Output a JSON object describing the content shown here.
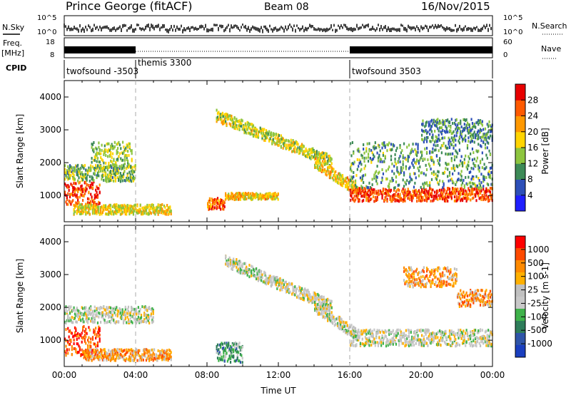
{
  "header": {
    "station": "Prince George (fitACF)",
    "beam": "Beam 08",
    "date": "16/Nov/2015"
  },
  "strip": {
    "nsky_label": "N.Sky",
    "nsearch_label": "N.Search",
    "noise_ticks": [
      "10^5",
      "10^0"
    ],
    "freq_label": "Freq.",
    "freq_unit": "[MHz]",
    "freq_ticks": [
      "18",
      "8"
    ],
    "nave_label": "Nave",
    "nave_ticks": [
      "60",
      "0"
    ],
    "cpid_label": "CPID",
    "cpid_segments": [
      {
        "name": "twofsound -3503",
        "start_h": 0,
        "end_h": 4
      },
      {
        "name": "themis 3300",
        "start_h": 4,
        "end_h": 16
      },
      {
        "name": "twofsound 3503",
        "start_h": 16,
        "end_h": 24
      }
    ]
  },
  "colors": {
    "power": [
      "#1f1fff",
      "#2d4fb8",
      "#3d8a57",
      "#8dc53f",
      "#ffd400",
      "#ff9800",
      "#ff5a00",
      "#e80000"
    ],
    "velocity": [
      "#ff0000",
      "#ff4a00",
      "#ff8a00",
      "#ffb000",
      "#c0c0c0",
      "#c8c8c8",
      "#3fb24a",
      "#2e7d5a",
      "#2f55a8",
      "#1a3fbf"
    ]
  },
  "chart_data": [
    {
      "type": "heatmap",
      "panel": "power",
      "ylabel": "Slant Range [km]",
      "xlabel": "",
      "yticks": [
        "1000",
        "2000",
        "3000",
        "4000"
      ],
      "ylim": [
        200,
        4500
      ],
      "xlim": [
        0,
        24
      ],
      "colorbar": {
        "label": "Power [dB]",
        "ticks": [
          "4",
          "8",
          "12",
          "16",
          "20",
          "24",
          "28"
        ],
        "range": [
          0,
          30
        ]
      },
      "bands": [
        {
          "t0": 0.0,
          "t1": 2.0,
          "r0": 700,
          "r1": 1400,
          "level": 0.85
        },
        {
          "t0": 0.0,
          "t1": 4.0,
          "r0": 1400,
          "r1": 1900,
          "level": 0.4
        },
        {
          "t0": 1.5,
          "t1": 3.8,
          "r0": 1800,
          "r1": 2600,
          "level": 0.45
        },
        {
          "t0": 0.5,
          "t1": 6.0,
          "r0": 400,
          "r1": 700,
          "level": 0.55
        },
        {
          "t0": 8.0,
          "t1": 9.0,
          "r0": 550,
          "r1": 900,
          "level": 0.75
        },
        {
          "t0": 9.0,
          "t1": 12.0,
          "r0": 850,
          "r1": 1050,
          "level": 0.6
        },
        {
          "t0": 8.5,
          "t1": 15.0,
          "r0": 3400,
          "r1": 2000,
          "level": 0.5
        },
        {
          "t0": 14.0,
          "t1": 16.5,
          "r0": 2000,
          "r1": 1100,
          "level": 0.6
        },
        {
          "t0": 16.0,
          "t1": 24.0,
          "r0": 800,
          "r1": 1200,
          "level": 0.85
        },
        {
          "t0": 16.0,
          "t1": 24.0,
          "r0": 1200,
          "r1": 2600,
          "level": 0.35
        },
        {
          "t0": 20.0,
          "t1": 24.0,
          "r0": 2600,
          "r1": 3300,
          "level": 0.3
        }
      ]
    },
    {
      "type": "heatmap",
      "panel": "velocity",
      "ylabel": "Slant Range [km]",
      "xlabel": "Time UT",
      "yticks": [
        "1000",
        "2000",
        "3000",
        "4000"
      ],
      "xticks": [
        "00:00",
        "04:00",
        "08:00",
        "12:00",
        "16:00",
        "20:00",
        "00:00"
      ],
      "ylim": [
        200,
        4500
      ],
      "xlim": [
        0,
        24
      ],
      "colorbar": {
        "label": "Velocity [m s-1]",
        "ticks": [
          "1000",
          "500",
          "100",
          "25",
          "-25",
          "-100",
          "-500",
          "-1000"
        ],
        "range": [
          -1000,
          1000
        ]
      },
      "bands": [
        {
          "t0": 0.0,
          "t1": 2.0,
          "r0": 500,
          "r1": 1400,
          "level": 0.15
        },
        {
          "t0": 1.0,
          "t1": 6.0,
          "r0": 350,
          "r1": 700,
          "level": 0.3
        },
        {
          "t0": 0.0,
          "t1": 5.0,
          "r0": 1500,
          "r1": 2000,
          "level": 0.5
        },
        {
          "t0": 8.5,
          "t1": 10.0,
          "r0": 300,
          "r1": 900,
          "level": 0.7
        },
        {
          "t0": 9.0,
          "t1": 15.0,
          "r0": 3400,
          "r1": 2000,
          "level": 0.5
        },
        {
          "t0": 14.0,
          "t1": 16.5,
          "r0": 2000,
          "r1": 1100,
          "level": 0.5
        },
        {
          "t0": 16.0,
          "t1": 24.0,
          "r0": 800,
          "r1": 1300,
          "level": 0.5
        },
        {
          "t0": 19.0,
          "t1": 22.0,
          "r0": 2600,
          "r1": 3200,
          "level": 0.3
        },
        {
          "t0": 22.0,
          "t1": 24.0,
          "r0": 2000,
          "r1": 2500,
          "level": 0.3
        }
      ]
    }
  ]
}
